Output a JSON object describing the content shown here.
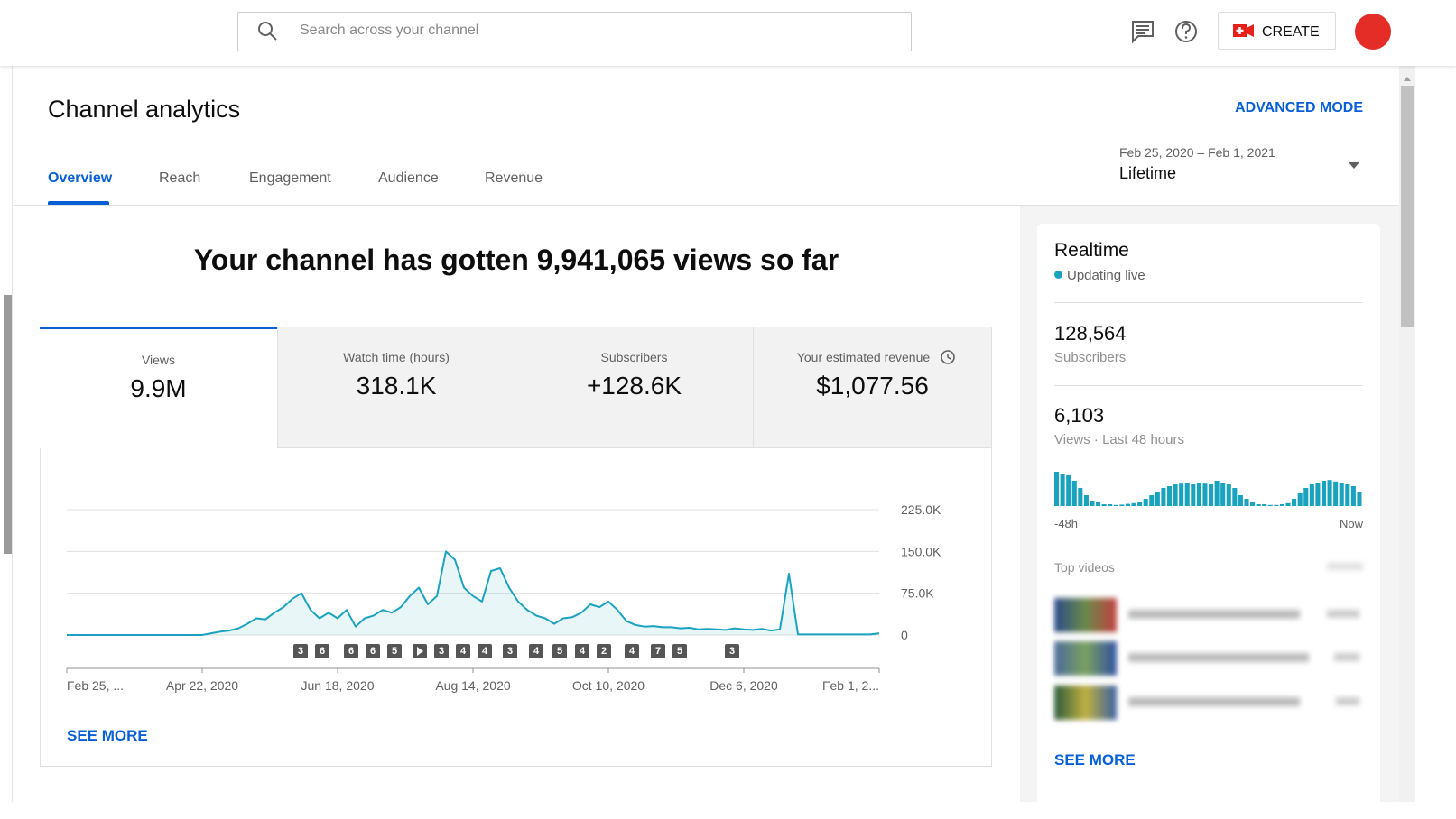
{
  "header": {
    "search_placeholder": "Search across your channel",
    "create": "CREATE"
  },
  "page": {
    "title": "Channel analytics",
    "advanced_mode": "ADVANCED MODE",
    "tabs": [
      "Overview",
      "Reach",
      "Engagement",
      "Audience",
      "Revenue"
    ],
    "date_range": "Feb 25, 2020 – Feb 1, 2021",
    "period": "Lifetime",
    "headline": "Your channel has gotten 9,941,065 views so far"
  },
  "metrics": [
    {
      "label": "Views",
      "value": "9.9M"
    },
    {
      "label": "Watch time (hours)",
      "value": "318.1K"
    },
    {
      "label": "Subscribers",
      "value": "+128.6K"
    },
    {
      "label": "Your estimated revenue",
      "value": "$1,077.56"
    }
  ],
  "chart_data": {
    "type": "line",
    "color": "#1aa3bf",
    "values": [
      0,
      0,
      0,
      0,
      0,
      0,
      0,
      0,
      0,
      0,
      0,
      0,
      0,
      0,
      0,
      0,
      3000,
      6000,
      8000,
      12000,
      20000,
      30000,
      28000,
      40000,
      50000,
      65000,
      75000,
      45000,
      30000,
      40000,
      30000,
      45000,
      15000,
      30000,
      35000,
      45000,
      40000,
      50000,
      70000,
      85000,
      55000,
      70000,
      150000,
      135000,
      85000,
      70000,
      60000,
      115000,
      120000,
      85000,
      60000,
      45000,
      35000,
      30000,
      20000,
      30000,
      32000,
      40000,
      55000,
      50000,
      60000,
      45000,
      25000,
      18000,
      15000,
      16000,
      14000,
      14000,
      12000,
      13000,
      10000,
      11000,
      10000,
      9000,
      12000,
      10000,
      9000,
      11000,
      8000,
      10000,
      110000,
      1000,
      1000,
      1000,
      1000,
      1000,
      1000,
      1000,
      1000,
      1000,
      3000
    ],
    "xtick_labels": [
      "Feb 25, ...",
      "Apr 22, 2020",
      "Jun 18, 2020",
      "Aug 14, 2020",
      "Oct 10, 2020",
      "Dec 6, 2020",
      "Feb 1, 2..."
    ],
    "ylim": [
      0,
      225000
    ],
    "yticks": [
      0,
      {
        "value": 75000,
        "label": "75.0K"
      },
      {
        "value": 150000,
        "label": "150.0K"
      },
      {
        "value": 225000,
        "label": "225.0K"
      }
    ],
    "grid": true,
    "video_markers": [
      "3",
      "6",
      "6",
      "6",
      "5",
      "3",
      "4",
      "4",
      "3",
      "4",
      "5",
      "4",
      "2",
      "4",
      "7",
      "5",
      "3"
    ]
  },
  "see_more": "SEE MORE",
  "realtime": {
    "title": "Realtime",
    "status": "Updating live",
    "subscribers": "128,564",
    "subscribers_label": "Subscribers",
    "views": "6,103",
    "views_label": "Views · Last 48 hours",
    "color": "#1aa3bf",
    "bars": [
      95,
      90,
      85,
      70,
      50,
      30,
      15,
      10,
      5,
      5,
      3,
      4,
      6,
      8,
      12,
      20,
      30,
      40,
      50,
      55,
      60,
      62,
      65,
      60,
      65,
      62,
      60,
      70,
      65,
      60,
      50,
      30,
      20,
      10,
      5,
      5,
      3,
      3,
      5,
      8,
      20,
      35,
      50,
      60,
      65,
      70,
      72,
      68,
      65,
      60,
      55,
      40
    ],
    "start": "-48h",
    "end": "Now",
    "top_videos": "Top videos",
    "see_more": "SEE MORE"
  }
}
